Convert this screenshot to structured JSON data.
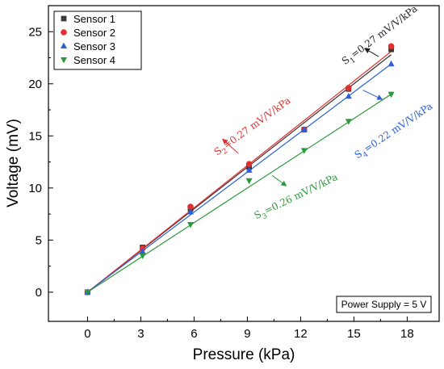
{
  "chart_data": {
    "type": "scatter",
    "xlabel": "Pressure (kPa)",
    "ylabel": "Voltage (mV)",
    "xlim": [
      -2.2,
      19.8
    ],
    "ylim": [
      -2.8,
      27.5
    ],
    "xticks": [
      0,
      3,
      6,
      9,
      12,
      15,
      18
    ],
    "yticks": [
      0,
      5,
      10,
      15,
      20,
      25
    ],
    "x": [
      0,
      3.1,
      5.8,
      9.1,
      12.2,
      14.7,
      17.1
    ],
    "legend_position": "top-left",
    "series": [
      {
        "name": "Sensor 1",
        "marker": "square",
        "color": "#3a3a3a",
        "line_color": "#333333",
        "values": [
          0,
          4.3,
          8.0,
          12.0,
          15.6,
          19.5,
          23.3
        ],
        "fit": [
          0,
          22.8
        ]
      },
      {
        "name": "Sensor 2",
        "marker": "circle",
        "color": "#e03030",
        "line_color": "#e83030",
        "values": [
          0,
          4.2,
          8.2,
          12.3,
          15.6,
          19.6,
          23.6
        ],
        "fit": [
          0,
          23.1
        ]
      },
      {
        "name": "Sensor 3",
        "marker": "triangle-up",
        "color": "#2a5fd8",
        "line_color": "#2a5fd8",
        "values": [
          0,
          3.9,
          7.7,
          11.7,
          15.6,
          18.8,
          21.9
        ],
        "fit": [
          0,
          21.9
        ]
      },
      {
        "name": "Sensor 4",
        "marker": "triangle-down",
        "color": "#2a9a3a",
        "line_color": "#2a9a3a",
        "values": [
          0,
          3.5,
          6.5,
          10.7,
          13.6,
          16.4,
          19.0
        ],
        "fit": [
          0,
          19.0
        ]
      }
    ],
    "annotations": [
      {
        "sym": "S",
        "sub": "1",
        "rest": "=0.27 mV/V/kPa",
        "color": "#222222",
        "at": [
          14.5,
          21.8
        ],
        "angle": -37,
        "arrow_from": [
          16.4,
          22.6
        ],
        "arrow_to": [
          15.6,
          23.4
        ]
      },
      {
        "sym": "S",
        "sub": "2",
        "rest": "=0.27 mV/V/kPa",
        "color": "#e03030",
        "at": [
          7.3,
          13.1
        ],
        "angle": -36,
        "arrow_from": [
          8.5,
          13.3
        ],
        "arrow_to": [
          7.6,
          14.7
        ]
      },
      {
        "sym": "S",
        "sub": "3",
        "rest": "=0.26 mV/V/kPa",
        "color": "#2a9a3a",
        "at": [
          9.5,
          7.0
        ],
        "angle": -26,
        "arrow_from": [
          10.4,
          11.2
        ],
        "arrow_to": [
          11.2,
          10.2
        ]
      },
      {
        "sym": "S",
        "sub": "4",
        "rest": "=0.22 mV/V/kPa",
        "color": "#2a5fd8",
        "at": [
          15.2,
          12.8
        ],
        "angle": -34,
        "arrow_from": [
          15.5,
          19.4
        ],
        "arrow_to": [
          16.6,
          18.5
        ]
      }
    ],
    "note": "Power Supply = 5 V"
  }
}
